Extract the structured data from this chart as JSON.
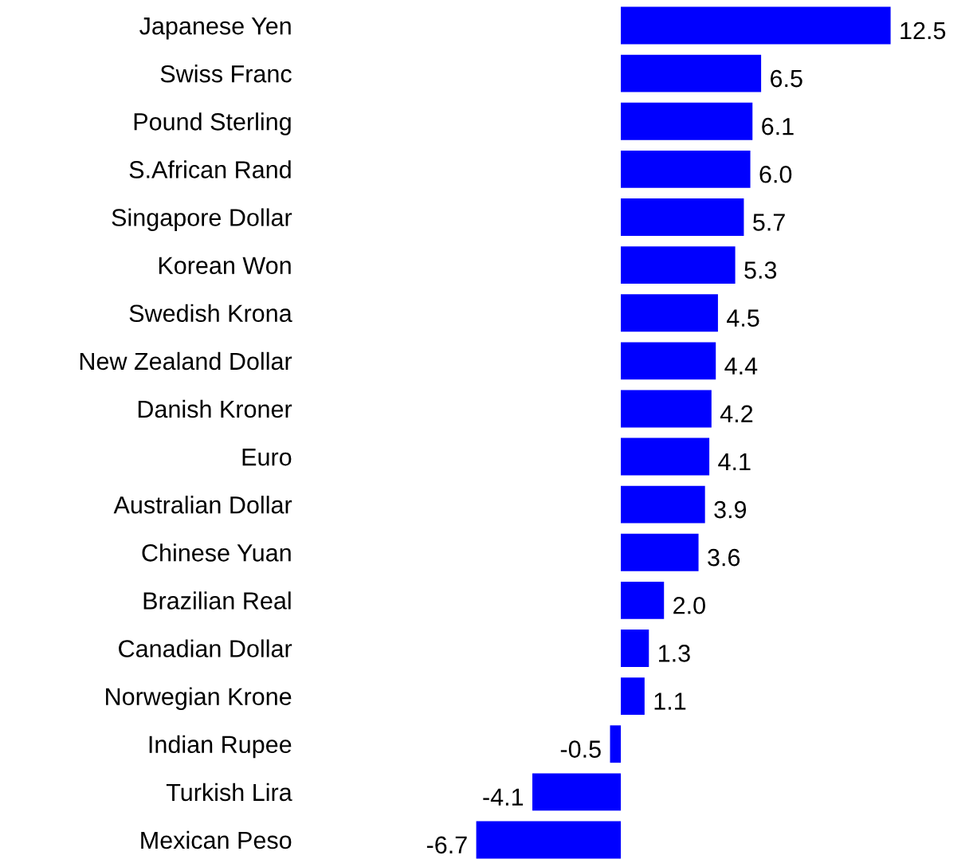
{
  "chart_data": {
    "type": "bar",
    "orientation": "horizontal",
    "value_labels": [
      "12.5",
      "6.5",
      "6.1",
      "6.0",
      "5.7",
      "5.3",
      "4.5",
      "4.4",
      "4.2",
      "4.1",
      "3.9",
      "3.6",
      "2.0",
      "1.3",
      "1.1",
      "-0.5",
      "-4.1",
      "-6.7"
    ],
    "color": "#0000ff",
    "grid": false,
    "legend": false,
    "categories": [
      "Japanese Yen",
      "Swiss Franc",
      "Pound Sterling",
      "S.African Rand",
      "Singapore Dollar",
      "Korean Won",
      "Swedish Krona",
      "New Zealand Dollar",
      "Danish Kroner",
      "Euro",
      "Australian Dollar",
      "Chinese Yuan",
      "Brazilian Real",
      "Canadian Dollar",
      "Norwegian Krone",
      "Indian Rupee",
      "Turkish Lira",
      "Mexican Peso"
    ],
    "values": [
      12.5,
      6.5,
      6.1,
      6.0,
      5.7,
      5.3,
      4.5,
      4.4,
      4.2,
      4.1,
      3.9,
      3.6,
      2.0,
      1.3,
      1.1,
      -0.5,
      -4.1,
      -6.7
    ]
  }
}
